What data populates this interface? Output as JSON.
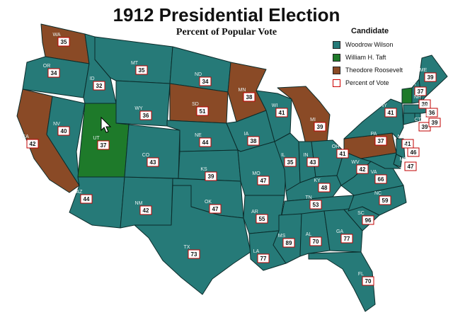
{
  "title": "1912 Presidential Election",
  "subtitle": "Percent of Popular Vote",
  "colors": {
    "wilson": "#267a78",
    "taft": "#1e7a2a",
    "roosevelt": "#8a4a26",
    "border": "#0b2b2a",
    "label_border": "#c00000",
    "background": "#ffffff"
  },
  "legend": {
    "header": "Candidate",
    "items": [
      {
        "key": "wilson",
        "label": "Woodrow Wilson"
      },
      {
        "key": "taft",
        "label": "William H. Taft"
      },
      {
        "key": "roosevelt",
        "label": "Theodore Roosevelt"
      },
      {
        "key": "pct",
        "label": "Percent of Vote"
      }
    ]
  },
  "states": [
    {
      "abbr": "WA",
      "winner": "roosevelt",
      "pct": "35"
    },
    {
      "abbr": "OR",
      "winner": "wilson",
      "pct": "34"
    },
    {
      "abbr": "CA",
      "winner": "roosevelt",
      "pct": "42"
    },
    {
      "abbr": "NV",
      "winner": "wilson",
      "pct": "40"
    },
    {
      "abbr": "ID",
      "winner": "wilson",
      "pct": "32"
    },
    {
      "abbr": "MT",
      "winner": "wilson",
      "pct": "35"
    },
    {
      "abbr": "WY",
      "winner": "wilson",
      "pct": "36"
    },
    {
      "abbr": "UT",
      "winner": "taft",
      "pct": "37"
    },
    {
      "abbr": "AZ",
      "winner": "wilson",
      "pct": "44"
    },
    {
      "abbr": "NM",
      "winner": "wilson",
      "pct": "42"
    },
    {
      "abbr": "CO",
      "winner": "wilson",
      "pct": "43"
    },
    {
      "abbr": "ND",
      "winner": "wilson",
      "pct": "34"
    },
    {
      "abbr": "SD",
      "winner": "roosevelt",
      "pct": "51"
    },
    {
      "abbr": "NE",
      "winner": "wilson",
      "pct": "44"
    },
    {
      "abbr": "KS",
      "winner": "wilson",
      "pct": "39"
    },
    {
      "abbr": "OK",
      "winner": "wilson",
      "pct": "47"
    },
    {
      "abbr": "TX",
      "winner": "wilson",
      "pct": "73"
    },
    {
      "abbr": "MN",
      "winner": "roosevelt",
      "pct": "38"
    },
    {
      "abbr": "IA",
      "winner": "wilson",
      "pct": "38"
    },
    {
      "abbr": "MO",
      "winner": "wilson",
      "pct": "47"
    },
    {
      "abbr": "AR",
      "winner": "wilson",
      "pct": "55"
    },
    {
      "abbr": "LA",
      "winner": "wilson",
      "pct": "77"
    },
    {
      "abbr": "WI",
      "winner": "wilson",
      "pct": "41"
    },
    {
      "abbr": "IL",
      "winner": "wilson",
      "pct": "35"
    },
    {
      "abbr": "MI",
      "winner": "roosevelt",
      "pct": "39"
    },
    {
      "abbr": "IN",
      "winner": "wilson",
      "pct": "43"
    },
    {
      "abbr": "OH",
      "winner": "wilson",
      "pct": "41"
    },
    {
      "abbr": "KY",
      "winner": "wilson",
      "pct": "48"
    },
    {
      "abbr": "TN",
      "winner": "wilson",
      "pct": "53"
    },
    {
      "abbr": "MS",
      "winner": "wilson",
      "pct": "89"
    },
    {
      "abbr": "AL",
      "winner": "wilson",
      "pct": "70"
    },
    {
      "abbr": "GA",
      "winner": "wilson",
      "pct": "77"
    },
    {
      "abbr": "FL",
      "winner": "wilson",
      "pct": "70"
    },
    {
      "abbr": "SC",
      "winner": "wilson",
      "pct": "96"
    },
    {
      "abbr": "NC",
      "winner": "wilson",
      "pct": "59"
    },
    {
      "abbr": "VA",
      "winner": "wilson",
      "pct": "66"
    },
    {
      "abbr": "WV",
      "winner": "wilson",
      "pct": "42"
    },
    {
      "abbr": "PA",
      "winner": "roosevelt",
      "pct": "37"
    },
    {
      "abbr": "NY",
      "winner": "wilson",
      "pct": "41"
    },
    {
      "abbr": "VT",
      "winner": "taft",
      "pct": "37"
    },
    {
      "abbr": "NH",
      "winner": "wilson",
      "pct": "39"
    },
    {
      "abbr": "ME",
      "winner": "wilson",
      "pct": "39"
    },
    {
      "abbr": "MA",
      "winner": "wilson",
      "pct": "36"
    },
    {
      "abbr": "CT",
      "winner": "wilson",
      "pct": "39"
    },
    {
      "abbr": "RI",
      "winner": "wilson",
      "pct": "39"
    },
    {
      "abbr": "NJ",
      "winner": "wilson",
      "pct": "41"
    },
    {
      "abbr": "DE",
      "winner": "wilson",
      "pct": "46"
    },
    {
      "abbr": "MD",
      "winner": "wilson",
      "pct": "47"
    }
  ]
}
